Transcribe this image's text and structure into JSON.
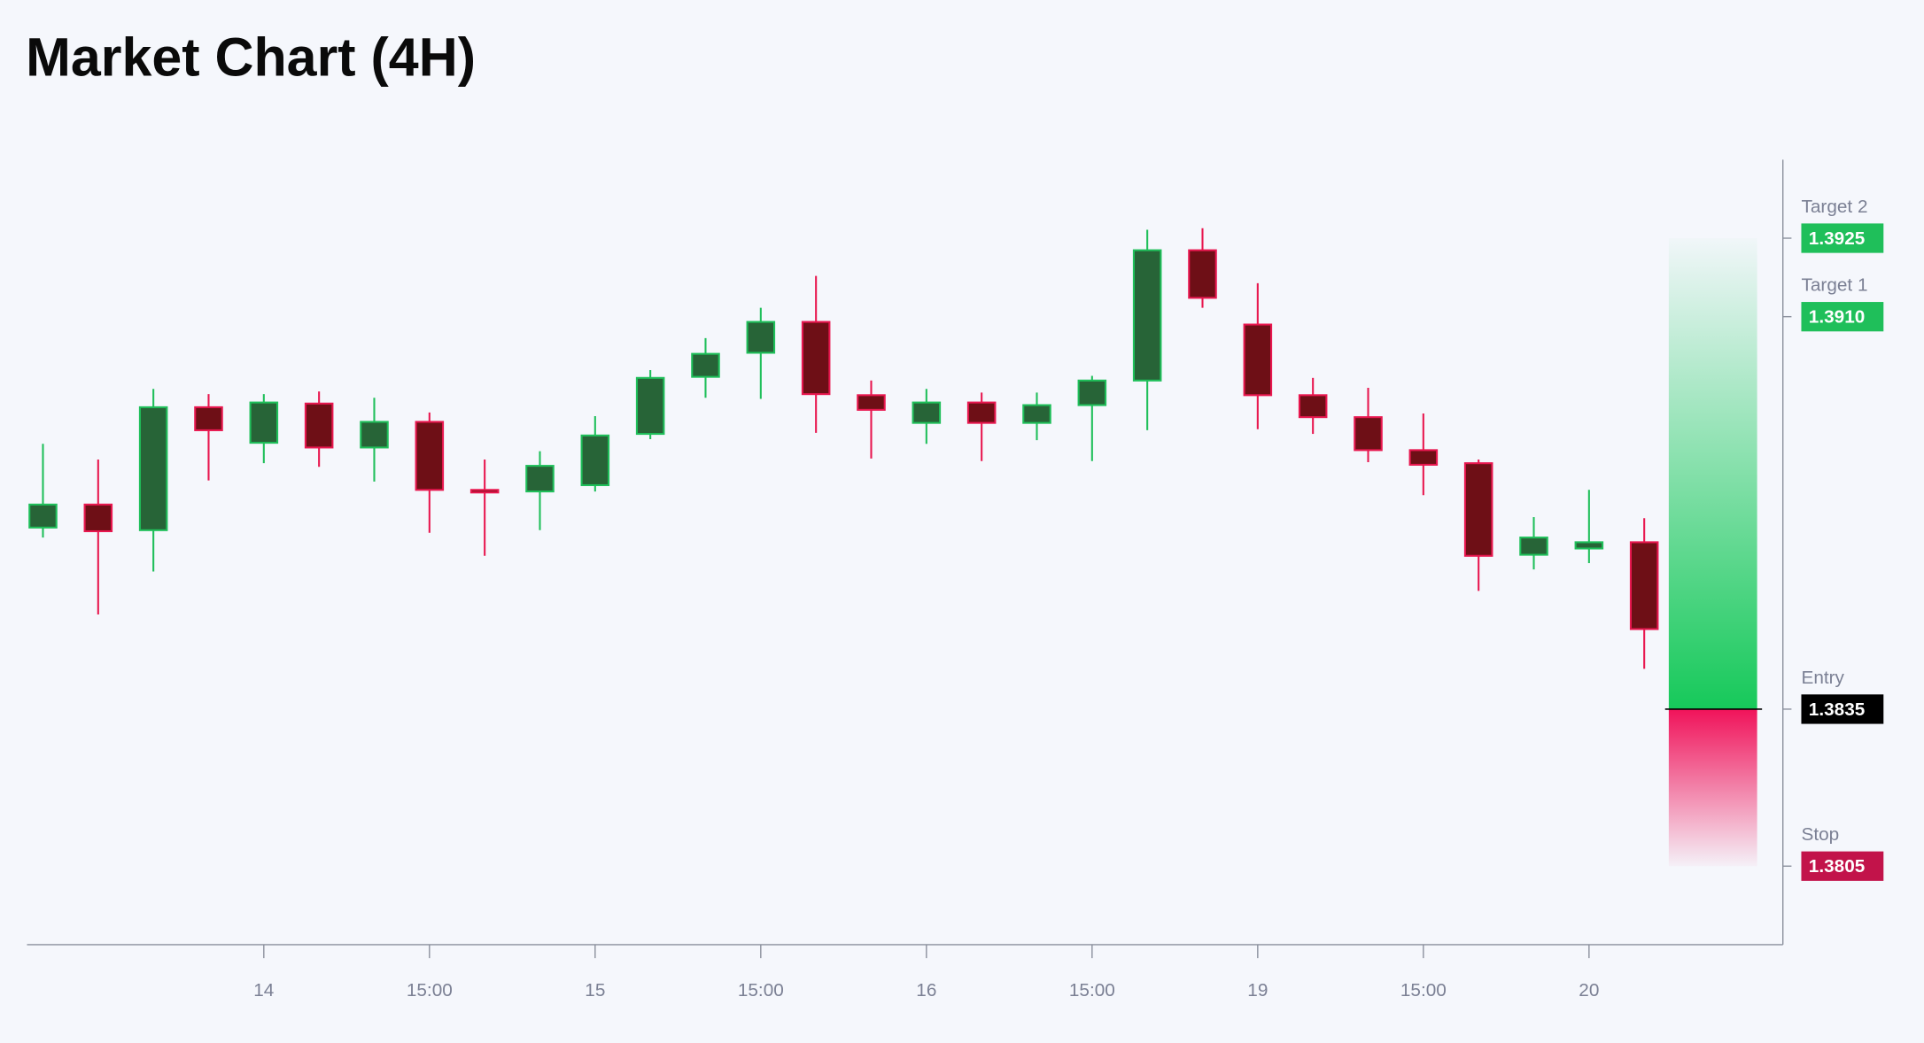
{
  "chart_data": {
    "type": "candlestick",
    "title": "Market Chart (4H)",
    "categories": [
      null,
      null,
      null,
      null,
      "14",
      null,
      null,
      "15:00",
      null,
      null,
      "15",
      null,
      null,
      "15:00",
      null,
      null,
      "16",
      null,
      null,
      "15:00",
      null,
      null,
      "19",
      null,
      null,
      "15:00",
      null,
      null,
      "20",
      null
    ],
    "open": [
      1.38697,
      1.38741,
      1.38692,
      1.38927,
      1.38859,
      1.38934,
      1.3885,
      1.38899,
      1.38769,
      1.38766,
      1.38778,
      1.38876,
      1.38985,
      1.39031,
      1.3909,
      1.3895,
      1.38897,
      1.38936,
      1.38897,
      1.38931,
      1.38978,
      1.39227,
      1.39085,
      1.3895,
      1.38908,
      1.38845,
      1.3882,
      1.38645,
      1.38657,
      1.38669
    ],
    "high": [
      1.38857,
      1.38827,
      1.38962,
      1.38952,
      1.38952,
      1.38957,
      1.38945,
      1.38917,
      1.38827,
      1.38843,
      1.3891,
      1.38998,
      1.39059,
      1.39117,
      1.39178,
      1.38978,
      1.38962,
      1.38955,
      1.38955,
      1.38987,
      1.39266,
      1.39269,
      1.39164,
      1.38983,
      1.38964,
      1.38915,
      1.38827,
      1.38717,
      1.38769,
      1.38715
    ],
    "low": [
      1.38678,
      1.38531,
      1.38613,
      1.38787,
      1.3882,
      1.38813,
      1.38785,
      1.38687,
      1.38643,
      1.38692,
      1.38766,
      1.38866,
      1.38945,
      1.38943,
      1.38878,
      1.38829,
      1.38857,
      1.38824,
      1.38864,
      1.38824,
      1.38883,
      1.39117,
      1.38885,
      1.38876,
      1.38822,
      1.38759,
      1.38576,
      1.38617,
      1.38629,
      1.38427
    ],
    "close": [
      1.38741,
      1.3869,
      1.38927,
      1.38883,
      1.38936,
      1.3885,
      1.38899,
      1.38769,
      1.38764,
      1.38815,
      1.38873,
      1.38983,
      1.39029,
      1.3909,
      1.38952,
      1.38922,
      1.38936,
      1.38897,
      1.38931,
      1.38978,
      1.39227,
      1.39136,
      1.3895,
      1.38908,
      1.38845,
      1.38817,
      1.38643,
      1.38678,
      1.38669,
      1.38503
    ],
    "up_color": "#1fbf5a",
    "down_color": "#e8174f",
    "ylim": [
      1.379,
      1.394
    ],
    "levels": [
      {
        "name": "Target 2",
        "value": 1.3925,
        "color": "#1fbf5a"
      },
      {
        "name": "Target 1",
        "value": 1.391,
        "label": "1.3910",
        "color": "#1fbf5a"
      },
      {
        "name": "Entry",
        "value": 1.3835,
        "color": "#000000"
      },
      {
        "name": "Stop",
        "value": 1.3805,
        "color": "#c2134a"
      }
    ]
  }
}
